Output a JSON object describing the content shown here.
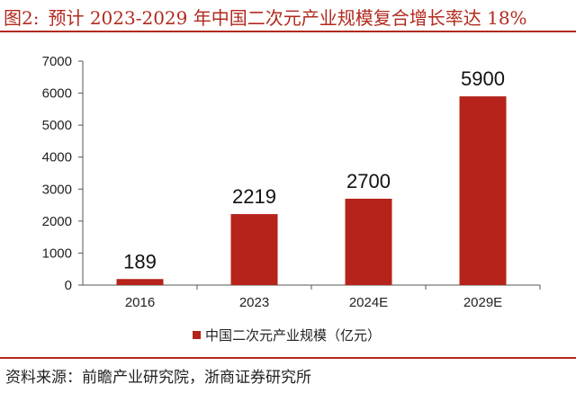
{
  "header": {
    "fig_label": "图2:",
    "title_text": "预计 2023-2029 年中国二次元产业规模复合增长率达 18%"
  },
  "footer": {
    "source": "资料来源：前瞻产业研究院，浙商证券研究所"
  },
  "colors": {
    "accent": "#b22a1e",
    "bar": "#b5231a"
  },
  "chart_data": {
    "type": "bar",
    "title": "预计 2023-2029 年中国二次元产业规模复合增长率达 18%",
    "categories": [
      "2016",
      "2023",
      "2024E",
      "2029E"
    ],
    "series": [
      {
        "name": "中国二次元产业规模（亿元）",
        "values": [
          189,
          2219,
          2700,
          5900
        ]
      }
    ],
    "ylim": [
      0,
      7000
    ],
    "yticks": [
      0,
      1000,
      2000,
      3000,
      4000,
      5000,
      6000,
      7000
    ],
    "xlabel": "",
    "ylabel": "",
    "grid": false,
    "legend": "bottom-center",
    "data_labels": [
      "189",
      "2219",
      "2700",
      "5900"
    ]
  }
}
